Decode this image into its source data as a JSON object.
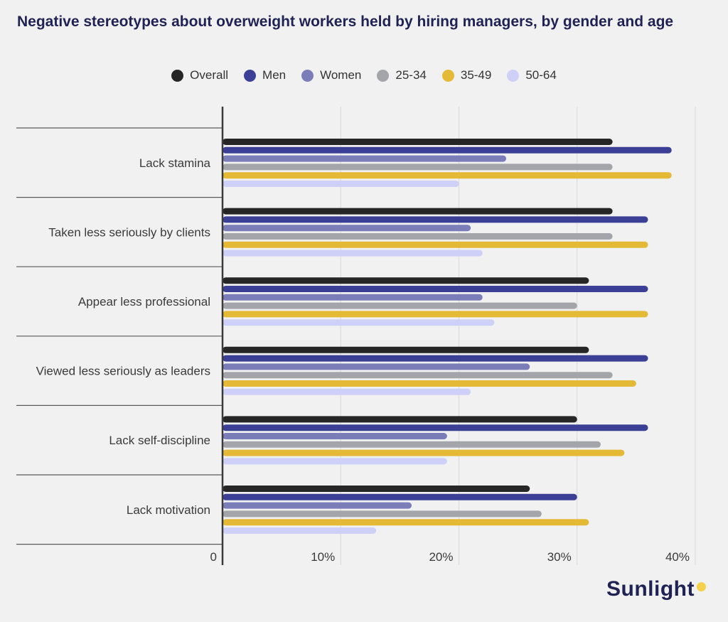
{
  "chart_data": {
    "type": "bar",
    "orientation": "horizontal",
    "title": "Negative stereotypes about overweight workers held by hiring managers, by gender and age",
    "categories": [
      "Lack stamina",
      "Taken less seriously by clients",
      "Appear less professional",
      "Viewed less seriously as leaders",
      "Lack self-discipline",
      "Lack motivation"
    ],
    "series": [
      {
        "name": "Overall",
        "color": "#262626",
        "values": [
          33,
          33,
          31,
          31,
          30,
          26
        ]
      },
      {
        "name": "Men",
        "color": "#3b3f96",
        "values": [
          38,
          36,
          36,
          36,
          36,
          30
        ]
      },
      {
        "name": "Women",
        "color": "#7a7db8",
        "values": [
          24,
          21,
          22,
          26,
          19,
          16
        ]
      },
      {
        "name": "25-34",
        "color": "#a3a5ab",
        "values": [
          33,
          33,
          30,
          33,
          32,
          27
        ]
      },
      {
        "name": "35-49",
        "color": "#e3b935",
        "values": [
          38,
          36,
          36,
          35,
          34,
          31
        ]
      },
      {
        "name": "50-64",
        "color": "#cfd0f7",
        "values": [
          20,
          22,
          23,
          21,
          19,
          13
        ]
      }
    ],
    "xlim": [
      0,
      40
    ],
    "xticks": [
      {
        "value": 0,
        "label": "0"
      },
      {
        "value": 10,
        "label": "10%"
      },
      {
        "value": 20,
        "label": "20%"
      },
      {
        "value": 30,
        "label": "30%"
      },
      {
        "value": 40,
        "label": "40%"
      }
    ],
    "legend_position": "top",
    "grid": true
  },
  "brand": "Sunlight"
}
